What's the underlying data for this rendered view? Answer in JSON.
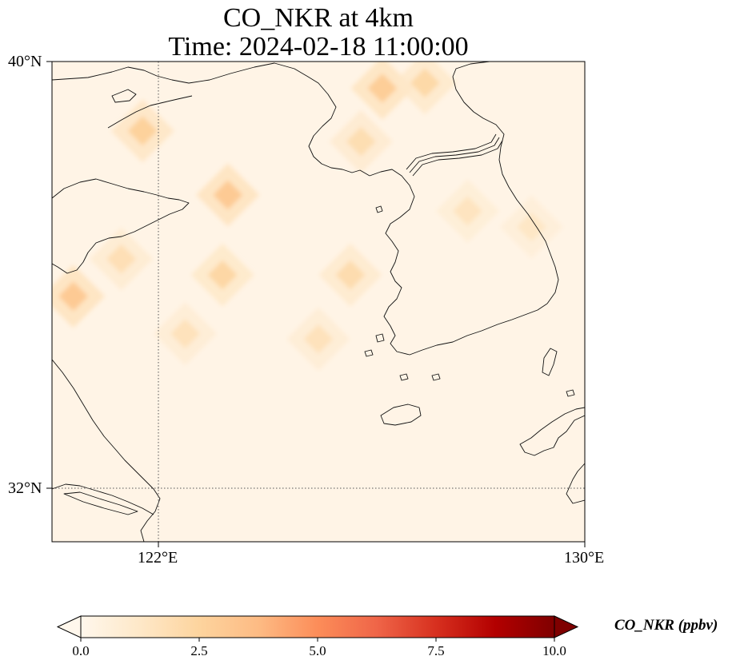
{
  "title_line1": "CO_NKR at 4km",
  "title_line2": "Time: 2024-02-18 11:00:00",
  "axes": {
    "lat_labels": [
      "40°N",
      "32°N"
    ],
    "lon_labels": [
      "122°E",
      "130°E"
    ]
  },
  "colorbar": {
    "label": "CO_NKR (ppbv)",
    "ticks": [
      "0.0",
      "2.5",
      "5.0",
      "7.5",
      "10.0"
    ],
    "colormap": "OrRd",
    "colors": [
      "#fff7ec",
      "#fee8c8",
      "#fdd49e",
      "#fdbb84",
      "#fc8d59",
      "#ef6548",
      "#d7301f",
      "#b30000",
      "#7f0000"
    ]
  },
  "chart_data": {
    "type": "heatmap",
    "title": "CO_NKR at 4km\nTime: 2024-02-18 11:00:00",
    "variable": "CO_NKR",
    "units": "ppbv",
    "lon_range": [
      120,
      130
    ],
    "lat_range": [
      31,
      40
    ],
    "value_range": [
      0,
      10
    ],
    "gridlines": {
      "lon": [
        122
      ],
      "lat": [
        32
      ]
    },
    "background_value": 0.4,
    "hotspots": [
      {
        "lon": 126.2,
        "lat": 39.5,
        "value": 2.8
      },
      {
        "lon": 127.0,
        "lat": 39.6,
        "value": 2.2
      },
      {
        "lon": 125.8,
        "lat": 38.5,
        "value": 1.9
      },
      {
        "lon": 121.7,
        "lat": 38.7,
        "value": 2.6
      },
      {
        "lon": 123.3,
        "lat": 37.5,
        "value": 3.0
      },
      {
        "lon": 121.3,
        "lat": 36.3,
        "value": 1.8
      },
      {
        "lon": 120.4,
        "lat": 35.6,
        "value": 3.0
      },
      {
        "lon": 123.2,
        "lat": 36.0,
        "value": 2.3
      },
      {
        "lon": 125.6,
        "lat": 36.0,
        "value": 2.0
      },
      {
        "lon": 122.5,
        "lat": 34.9,
        "value": 1.6
      },
      {
        "lon": 125.0,
        "lat": 34.8,
        "value": 1.6
      },
      {
        "lon": 127.8,
        "lat": 37.2,
        "value": 1.5
      },
      {
        "lon": 129.0,
        "lat": 36.9,
        "value": 1.3
      }
    ]
  }
}
